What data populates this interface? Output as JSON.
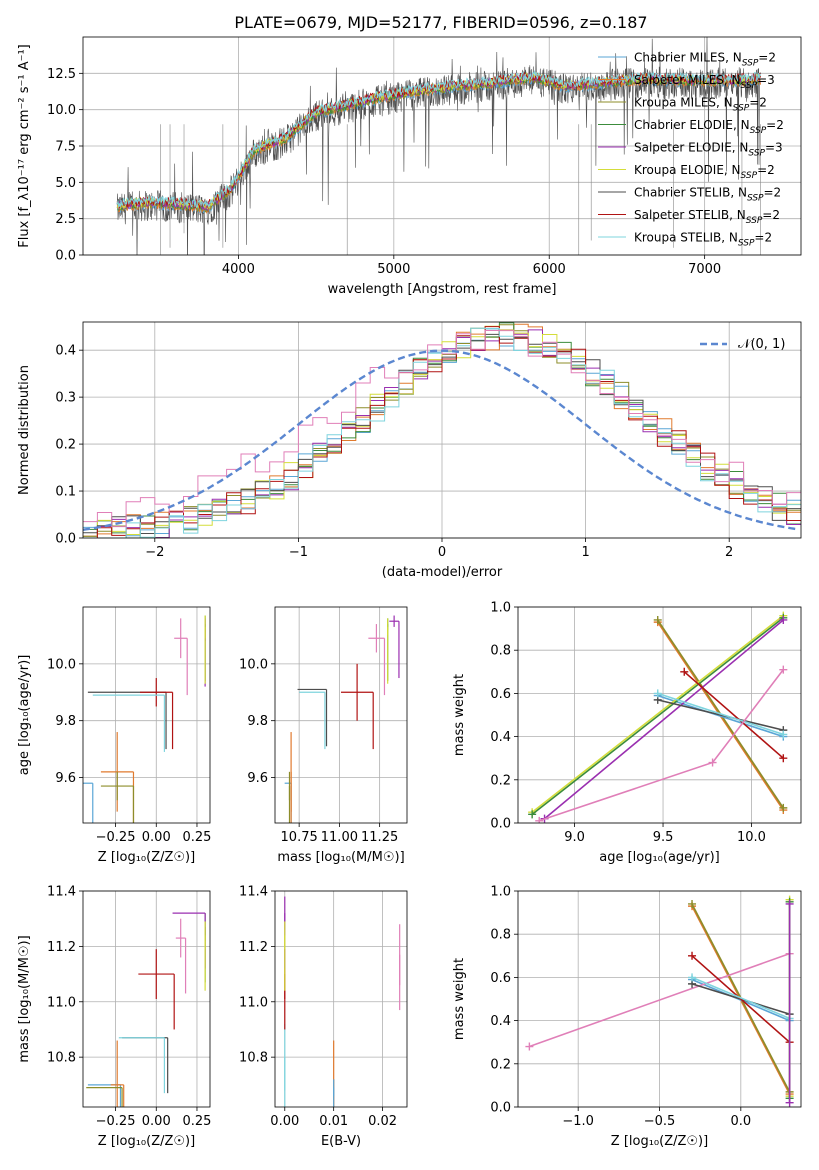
{
  "title": "PLATE=0679, MJD=52177, FIBERID=0596, z=0.187",
  "colors": {
    "chabrier_miles": "#5aa6d6",
    "salpeter_miles": "#e07a2e",
    "kroupa_miles": "#8d8d2a",
    "chabrier_elodie": "#3c8c3c",
    "salpeter_elodie": "#9a2fb0",
    "kroupa_elodie": "#d4dd3a",
    "chabrier_stelib": "#4d4d4d",
    "salpeter_stelib": "#b01313",
    "kroupa_stelib": "#7fd4de",
    "gaussian": "#5b87d0",
    "pink": "#e07fb8"
  },
  "chart_data": [
    {
      "id": "spectrum",
      "type": "line",
      "xlabel": "wavelength [Angstrom, rest frame]",
      "ylabel": "Flux [f_λ10⁻¹⁷ erg cm⁻² s⁻¹ A⁻¹]",
      "xlim": [
        3000,
        7620
      ],
      "ylim": [
        0,
        15
      ],
      "xticks": [
        "4000",
        "5000",
        "6000",
        "7000"
      ],
      "yticks": [
        "0.0",
        "2.5",
        "5.0",
        "7.5",
        "10.0",
        "12.5"
      ],
      "continuum": [
        [
          3200,
          3.3
        ],
        [
          3400,
          3.6
        ],
        [
          3600,
          3.5
        ],
        [
          3800,
          3.3
        ],
        [
          3950,
          4.5
        ],
        [
          4100,
          7.2
        ],
        [
          4300,
          8.0
        ],
        [
          4500,
          9.8
        ],
        [
          4700,
          10.3
        ],
        [
          4900,
          10.8
        ],
        [
          5100,
          11.2
        ],
        [
          5300,
          11.5
        ],
        [
          5600,
          11.8
        ],
        [
          5900,
          12.2
        ],
        [
          6100,
          11.6
        ],
        [
          6300,
          11.8
        ],
        [
          6600,
          12.1
        ],
        [
          6900,
          12.0
        ],
        [
          7200,
          12.0
        ],
        [
          7350,
          12.1
        ]
      ],
      "legend": [
        {
          "label": "Chabrier MILES, N",
          "sub": "SSP",
          "suffix": "=2"
        },
        {
          "label": "Salpeter MILES, N",
          "sub": "SSP",
          "suffix": "=3"
        },
        {
          "label": "Kroupa MILES, N",
          "sub": "SSP",
          "suffix": "=2"
        },
        {
          "label": "Chabrier ELODIE, N",
          "sub": "SSP",
          "suffix": "=2"
        },
        {
          "label": "Salpeter ELODIE, N",
          "sub": "SSP",
          "suffix": "=3"
        },
        {
          "label": "Kroupa ELODIE, N",
          "sub": "SSP",
          "suffix": "=2"
        },
        {
          "label": "Chabrier STELIB, N",
          "sub": "SSP",
          "suffix": "=2"
        },
        {
          "label": "Salpeter STELIB, N",
          "sub": "SSP",
          "suffix": "=2"
        },
        {
          "label": "Kroupa STELIB, N",
          "sub": "SSP",
          "suffix": "=2"
        }
      ]
    },
    {
      "id": "residuals",
      "type": "histogram",
      "xlabel": "(data-model)/error",
      "ylabel": "Normed distribution",
      "xlim": [
        -2.5,
        2.5
      ],
      "ylim": [
        0,
        0.46
      ],
      "xticks": [
        "−2",
        "−1",
        "0",
        "1",
        "2"
      ],
      "yticks": [
        "0.0",
        "0.1",
        "0.2",
        "0.3",
        "0.4"
      ],
      "gaussian_label": "𝒩(0, 1)",
      "bin_width": 0.1
    },
    {
      "id": "age_vs_Z",
      "type": "errorbar",
      "xlabel": "Z [log₁₀(Z/Z☉)]",
      "ylabel": "age  [log₁₀(age/yr)]",
      "xlim": [
        -0.45,
        0.33
      ],
      "ylim": [
        9.44,
        10.2
      ],
      "xticks": [
        "−0.25",
        "0.00",
        "0.25"
      ],
      "yticks": [
        "9.6",
        "9.8",
        "10.0"
      ],
      "points": [
        {
          "c": "chabrier_miles",
          "x": -0.42,
          "xe": 0.03,
          "y": 9.58,
          "ye": 0.0
        },
        {
          "c": "salpeter_miles",
          "x": -0.24,
          "xe": 0.1,
          "y": 9.62,
          "ye": 0.14
        },
        {
          "c": "kroupa_miles",
          "x": -0.24,
          "xe": 0.1,
          "y": 9.57,
          "ye": 0.05
        },
        {
          "c": "chabrier_elodie",
          "x": 0.3,
          "xe": 0.0,
          "y": 10.14,
          "ye": 0.03
        },
        {
          "c": "salpeter_elodie",
          "x": 0.3,
          "xe": 0.0,
          "y": 10.12,
          "ye": 0.04
        },
        {
          "c": "kroupa_elodie",
          "x": 0.3,
          "xe": 0.0,
          "y": 10.13,
          "ye": 0.04
        },
        {
          "c": "chabrier_stelib",
          "x": -0.18,
          "xe": 0.24,
          "y": 9.9,
          "ye": 0.0
        },
        {
          "c": "salpeter_stelib",
          "x": 0.0,
          "xe": 0.1,
          "y": 9.9,
          "ye": 0.05
        },
        {
          "c": "kroupa_stelib",
          "x": -0.17,
          "xe": 0.22,
          "y": 9.89,
          "ye": 0.0
        },
        {
          "c": "pink",
          "x": 0.15,
          "xe": 0.04,
          "y": 10.09,
          "ye": 0.07
        }
      ]
    },
    {
      "id": "age_vs_mass",
      "type": "errorbar",
      "xlabel": "mass [log₁₀(M/M☉)]",
      "ylabel": "",
      "xlim": [
        10.6,
        11.42
      ],
      "ylim": [
        9.44,
        10.2
      ],
      "xticks": [
        "10.75",
        "11.00",
        "11.25"
      ],
      "yticks": [
        "9.6",
        "9.8",
        "10.0"
      ],
      "points": [
        {
          "c": "chabrier_miles",
          "x": 10.68,
          "xe": 0.02,
          "y": 9.58,
          "ye": 0.0
        },
        {
          "c": "salpeter_miles",
          "x": 10.7,
          "xe": 0.0,
          "y": 9.62,
          "ye": 0.14
        },
        {
          "c": "kroupa_miles",
          "x": 10.69,
          "xe": 0.0,
          "y": 9.57,
          "ye": 0.05
        },
        {
          "c": "chabrier_elodie",
          "x": 11.3,
          "xe": 0.0,
          "y": 10.14,
          "ye": 0.02
        },
        {
          "c": "salpeter_elodie",
          "x": 11.34,
          "xe": 0.03,
          "y": 10.15,
          "ye": 0.02
        },
        {
          "c": "kroupa_elodie",
          "x": 11.3,
          "xe": 0.0,
          "y": 10.13,
          "ye": 0.03
        },
        {
          "c": "chabrier_stelib",
          "x": 10.83,
          "xe": 0.09,
          "y": 9.91,
          "ye": 0.0
        },
        {
          "c": "salpeter_stelib",
          "x": 11.11,
          "xe": 0.1,
          "y": 9.9,
          "ye": 0.1
        },
        {
          "c": "kroupa_stelib",
          "x": 10.83,
          "xe": 0.08,
          "y": 9.9,
          "ye": 0.0
        },
        {
          "c": "pink",
          "x": 11.23,
          "xe": 0.05,
          "y": 10.09,
          "ye": 0.05
        }
      ]
    },
    {
      "id": "weight_vs_age",
      "type": "line",
      "xlabel": "age  [log₁₀(age/yr)]",
      "ylabel": "mass weight",
      "xlim": [
        8.68,
        10.28
      ],
      "ylim": [
        0,
        1
      ],
      "xticks": [
        "9.0",
        "9.5",
        "10.0"
      ],
      "yticks": [
        "0.0",
        "0.2",
        "0.4",
        "0.6",
        "0.8",
        "1.0"
      ],
      "series": [
        {
          "c": "salpeter_miles",
          "x": [
            9.47,
            10.18
          ],
          "y": [
            0.93,
            0.06
          ]
        },
        {
          "c": "kroupa_miles",
          "x": [
            9.47,
            10.18
          ],
          "y": [
            0.94,
            0.07
          ]
        },
        {
          "c": "chabrier_miles",
          "x": [
            9.47,
            10.18
          ],
          "y": [
            0.59,
            0.4
          ]
        },
        {
          "c": "kroupa_elodie",
          "x": [
            8.76,
            10.18
          ],
          "y": [
            0.05,
            0.96
          ]
        },
        {
          "c": "chabrier_elodie",
          "x": [
            8.76,
            10.18
          ],
          "y": [
            0.04,
            0.95
          ]
        },
        {
          "c": "salpeter_elodie",
          "x": [
            8.83,
            10.18
          ],
          "y": [
            0.02,
            0.94
          ]
        },
        {
          "c": "chabrier_stelib",
          "x": [
            9.47,
            10.18
          ],
          "y": [
            0.57,
            0.43
          ]
        },
        {
          "c": "salpeter_stelib",
          "x": [
            9.62,
            10.18
          ],
          "y": [
            0.7,
            0.3
          ]
        },
        {
          "c": "kroupa_stelib",
          "x": [
            9.47,
            10.18
          ],
          "y": [
            0.6,
            0.41
          ]
        },
        {
          "c": "pink",
          "x": [
            8.8,
            9.78,
            10.18
          ],
          "y": [
            0.01,
            0.28,
            0.71
          ]
        }
      ]
    },
    {
      "id": "mass_vs_Z",
      "type": "errorbar",
      "xlabel": "Z [log₁₀(Z/Z☉)]",
      "ylabel": "mass [log₁₀(M/M☉)]",
      "xlim": [
        -0.45,
        0.33
      ],
      "ylim": [
        10.62,
        11.4
      ],
      "xticks": [
        "−0.25",
        "0.00",
        "0.25"
      ],
      "yticks": [
        "10.8",
        "11.0",
        "11.2",
        "11.4"
      ],
      "points": [
        {
          "c": "chabrier_miles",
          "x": -0.32,
          "xe": 0.1,
          "y": 10.7,
          "ye": 0.0
        },
        {
          "c": "salpeter_miles",
          "x": -0.24,
          "xe": 0.04,
          "y": 10.7,
          "ye": 0.16
        },
        {
          "c": "kroupa_miles",
          "x": -0.32,
          "xe": 0.11,
          "y": 10.69,
          "ye": 0.0
        },
        {
          "c": "chabrier_elodie",
          "x": 0.3,
          "xe": 0.0,
          "y": 11.27,
          "ye": 0.05
        },
        {
          "c": "salpeter_elodie",
          "x": 0.2,
          "xe": 0.1,
          "y": 11.32,
          "ye": 0.0
        },
        {
          "c": "kroupa_elodie",
          "x": 0.3,
          "xe": 0.0,
          "y": 11.24,
          "ye": 0.05
        },
        {
          "c": "chabrier_stelib",
          "x": -0.07,
          "xe": 0.14,
          "y": 10.87,
          "ye": 0.0
        },
        {
          "c": "salpeter_stelib",
          "x": 0.0,
          "xe": 0.11,
          "y": 11.1,
          "ye": 0.09
        },
        {
          "c": "kroupa_stelib",
          "x": -0.09,
          "xe": 0.14,
          "y": 10.87,
          "ye": 0.0
        },
        {
          "c": "pink",
          "x": 0.15,
          "xe": 0.03,
          "y": 11.23,
          "ye": 0.07
        }
      ]
    },
    {
      "id": "mass_vs_EBV",
      "type": "errorbar",
      "xlabel": "E(B-V)",
      "ylabel": "",
      "xlim": [
        -0.002,
        0.025
      ],
      "ylim": [
        10.62,
        11.4
      ],
      "xticks": [
        "0.00",
        "0.01",
        "0.02"
      ],
      "yticks": [
        "10.8",
        "11.0",
        "11.2",
        "11.4"
      ],
      "points": [
        {
          "c": "kroupa_stelib",
          "x": 0.0,
          "xe": 0.0,
          "y": 10.8,
          "ye": 0.12
        },
        {
          "c": "salpeter_stelib",
          "x": 0.0,
          "xe": 0.0,
          "y": 11.1,
          "ye": 0.09
        },
        {
          "c": "salpeter_elodie",
          "x": 0.0,
          "xe": 0.0,
          "y": 11.32,
          "ye": 0.06
        },
        {
          "c": "kroupa_elodie",
          "x": 0.0,
          "xe": 0.0,
          "y": 11.24,
          "ye": 0.05
        },
        {
          "c": "salpeter_miles",
          "x": 0.01,
          "xe": 0.0,
          "y": 10.72,
          "ye": 0.14
        },
        {
          "c": "chabrier_miles",
          "x": 0.01,
          "xe": 0.0,
          "y": 10.69,
          "ye": 0.03
        },
        {
          "c": "pink",
          "x": 0.0235,
          "xe": 0.0,
          "y": 11.17,
          "ye": 0.11
        }
      ]
    },
    {
      "id": "weight_vs_Z",
      "type": "line",
      "xlabel": "Z [log₁₀(Z/Z☉)]",
      "ylabel": "mass weight",
      "xlim": [
        -1.37,
        0.37
      ],
      "ylim": [
        0,
        1
      ],
      "xticks": [
        "−1.0",
        "−0.5",
        "0.0"
      ],
      "yticks": [
        "0.0",
        "0.2",
        "0.4",
        "0.6",
        "0.8",
        "1.0"
      ],
      "series": [
        {
          "c": "salpeter_miles",
          "x": [
            -0.3,
            0.3
          ],
          "y": [
            0.93,
            0.06
          ]
        },
        {
          "c": "kroupa_miles",
          "x": [
            -0.3,
            0.3
          ],
          "y": [
            0.94,
            0.07
          ]
        },
        {
          "c": "chabrier_miles",
          "x": [
            -0.3,
            0.3
          ],
          "y": [
            0.59,
            0.4
          ]
        },
        {
          "c": "pink",
          "x": [
            -1.3,
            0.3
          ],
          "y": [
            0.28,
            0.71
          ]
        },
        {
          "c": "chabrier_stelib",
          "x": [
            -0.3,
            0.3
          ],
          "y": [
            0.57,
            0.43
          ]
        },
        {
          "c": "salpeter_stelib",
          "x": [
            -0.3,
            0.3
          ],
          "y": [
            0.7,
            0.3
          ]
        },
        {
          "c": "kroupa_stelib",
          "x": [
            -0.3,
            0.3
          ],
          "y": [
            0.6,
            0.41
          ]
        },
        {
          "c": "kroupa_elodie",
          "x": [
            0.3,
            0.3
          ],
          "y": [
            0.05,
            0.96
          ]
        },
        {
          "c": "chabrier_elodie",
          "x": [
            0.3,
            0.3
          ],
          "y": [
            0.04,
            0.95
          ]
        },
        {
          "c": "salpeter_elodie",
          "x": [
            0.3,
            0.3
          ],
          "y": [
            0.02,
            0.94
          ]
        }
      ]
    }
  ]
}
